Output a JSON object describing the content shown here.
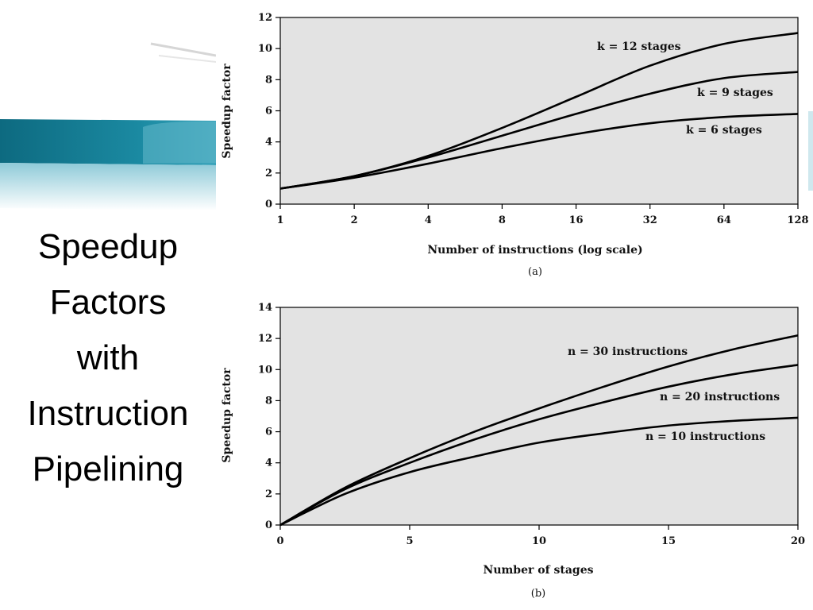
{
  "slide": {
    "title_lines": [
      "Speedup",
      "Factors",
      "with",
      "Instruction",
      "Pipelining"
    ]
  },
  "theme": {
    "banner_dark": "#0d6a80",
    "banner_mid": "#2a93ab",
    "banner_light": "#b8dde6",
    "plot_bg": "#e3e3e3",
    "line_color": "#000000"
  },
  "chart_data": [
    {
      "id": "a",
      "type": "line",
      "caption": "(a)",
      "xlabel": "Number of instructions (log scale)",
      "ylabel": "Speedup factor",
      "xscale": "log2",
      "xlim": [
        1,
        128
      ],
      "ylim": [
        0,
        12
      ],
      "xticks": [
        1,
        2,
        4,
        8,
        16,
        32,
        64,
        128
      ],
      "yticks": [
        0,
        2,
        4,
        6,
        8,
        10,
        12
      ],
      "grid": false,
      "series": [
        {
          "label": "k = 12 stages",
          "x": [
            1,
            2,
            4,
            8,
            16,
            32,
            64,
            128
          ],
          "y": [
            1.0,
            1.8,
            3.1,
            4.9,
            6.9,
            8.9,
            10.3,
            11.0
          ]
        },
        {
          "label": "k = 9 stages",
          "x": [
            1,
            2,
            4,
            8,
            16,
            32,
            64,
            128
          ],
          "y": [
            1.0,
            1.8,
            3.0,
            4.4,
            5.8,
            7.1,
            8.1,
            8.5
          ]
        },
        {
          "label": "k = 6 stages",
          "x": [
            1,
            2,
            4,
            8,
            16,
            32,
            64,
            128
          ],
          "y": [
            1.0,
            1.7,
            2.6,
            3.6,
            4.5,
            5.2,
            5.6,
            5.8
          ]
        }
      ]
    },
    {
      "id": "b",
      "type": "line",
      "caption": "(b)",
      "xlabel": "Number of stages",
      "ylabel": "Speedup factor",
      "xscale": "linear",
      "xlim": [
        0,
        20
      ],
      "ylim": [
        0,
        14
      ],
      "xticks": [
        0,
        5,
        10,
        15,
        20
      ],
      "yticks": [
        0,
        2,
        4,
        6,
        8,
        10,
        12,
        14
      ],
      "grid": false,
      "series": [
        {
          "label": "n = 30 instructions",
          "x": [
            0,
            2.5,
            5,
            7.5,
            10,
            12.5,
            15,
            17.5,
            20
          ],
          "y": [
            0,
            2.4,
            4.3,
            6.0,
            7.5,
            8.9,
            10.2,
            11.3,
            12.2
          ]
        },
        {
          "label": "n = 20 instructions",
          "x": [
            0,
            2.5,
            5,
            7.5,
            10,
            12.5,
            15,
            17.5,
            20
          ],
          "y": [
            0,
            2.3,
            4.0,
            5.5,
            6.8,
            7.9,
            8.9,
            9.7,
            10.3
          ]
        },
        {
          "label": "n = 10 instructions",
          "x": [
            0,
            2.5,
            5,
            7.5,
            10,
            12.5,
            15,
            17.5,
            20
          ],
          "y": [
            0,
            2.0,
            3.4,
            4.4,
            5.3,
            5.9,
            6.4,
            6.7,
            6.9
          ]
        }
      ]
    }
  ]
}
